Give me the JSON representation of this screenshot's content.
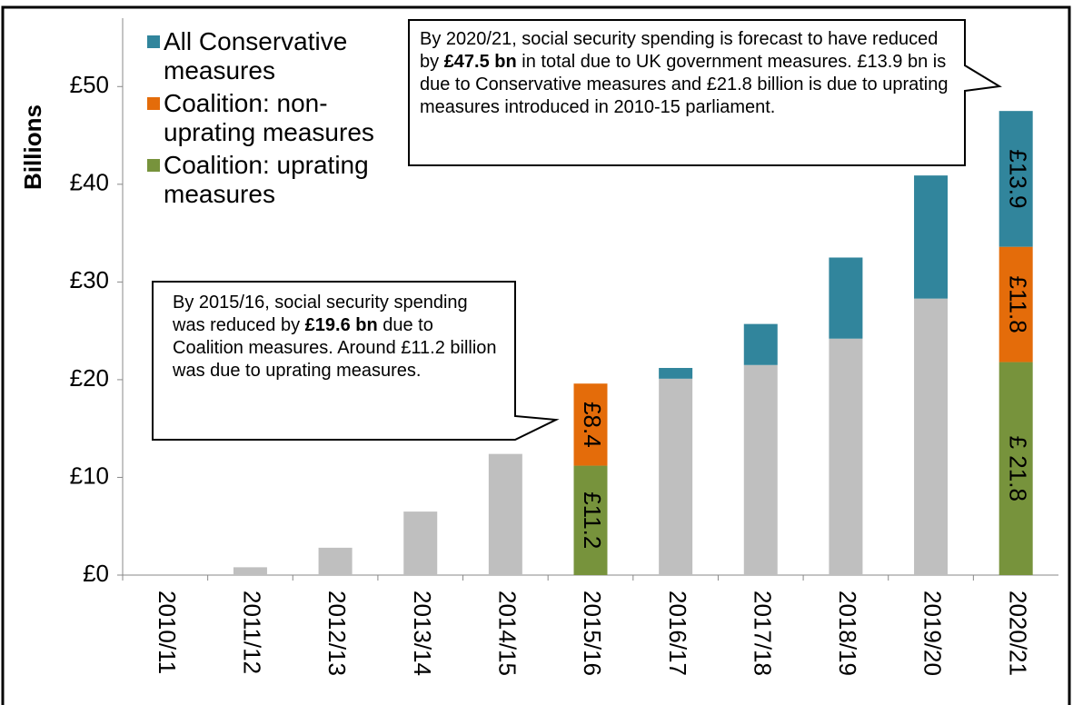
{
  "chart_data": {
    "type": "stacked-bar",
    "y_label": "Billions",
    "categories": [
      "2010/11",
      "2011/12",
      "2012/13",
      "2013/14",
      "2014/15",
      "2015/16",
      "2016/17",
      "2017/18",
      "2018/19",
      "2019/20",
      "2020/21"
    ],
    "series": [
      {
        "color": "#bfbfbf",
        "values": [
          0,
          0.8,
          2.8,
          6.5,
          12.4,
          null,
          20.1,
          21.5,
          24.2,
          28.3,
          null
        ]
      },
      {
        "name": "Coalition: uprating measures",
        "color": "#77933c",
        "values": [
          null,
          null,
          null,
          null,
          null,
          11.2,
          null,
          null,
          null,
          null,
          21.8
        ],
        "value_labels": [
          null,
          null,
          null,
          null,
          null,
          "£11.2",
          null,
          null,
          null,
          null,
          "£ 21.8"
        ]
      },
      {
        "name": "Coalition: non-uprating measures",
        "color": "#e46c0a",
        "values": [
          null,
          null,
          null,
          null,
          null,
          8.4,
          null,
          null,
          null,
          null,
          11.8
        ],
        "value_labels": [
          null,
          null,
          null,
          null,
          null,
          "£8.4",
          null,
          null,
          null,
          null,
          "£11.8"
        ]
      },
      {
        "name": "All Conservative measures",
        "color": "#31859c",
        "values": [
          null,
          null,
          null,
          null,
          null,
          null,
          1.1,
          4.2,
          8.3,
          12.6,
          13.9
        ],
        "value_labels": [
          null,
          null,
          null,
          null,
          null,
          null,
          null,
          null,
          null,
          null,
          "£13.9"
        ]
      }
    ],
    "ylim": [
      0,
      57
    ],
    "yticks": [
      {
        "value": 0,
        "label": "£0"
      },
      {
        "value": 10,
        "label": "£10"
      },
      {
        "value": 20,
        "label": "£20"
      },
      {
        "value": 30,
        "label": "£30"
      },
      {
        "value": 40,
        "label": "£40"
      },
      {
        "value": 50,
        "label": "£50"
      }
    ],
    "grid": false,
    "legend": "upper left",
    "annotations": [
      {
        "before": "By 2015/16, social security spending was reduced by ",
        "bold": "£19.6 bn",
        "after": " due to Coalition measures. Around £11.2 billion was due to uprating measures."
      },
      {
        "before": "By 2020/21, social security spending is forecast to have reduced by ",
        "bold": "£47.5 bn",
        "after": " in total due to UK government measures. £13.9 bn is due to Conservative measures and £21.8 billion is due to uprating measures introduced in 2010-15 parliament."
      }
    ]
  }
}
